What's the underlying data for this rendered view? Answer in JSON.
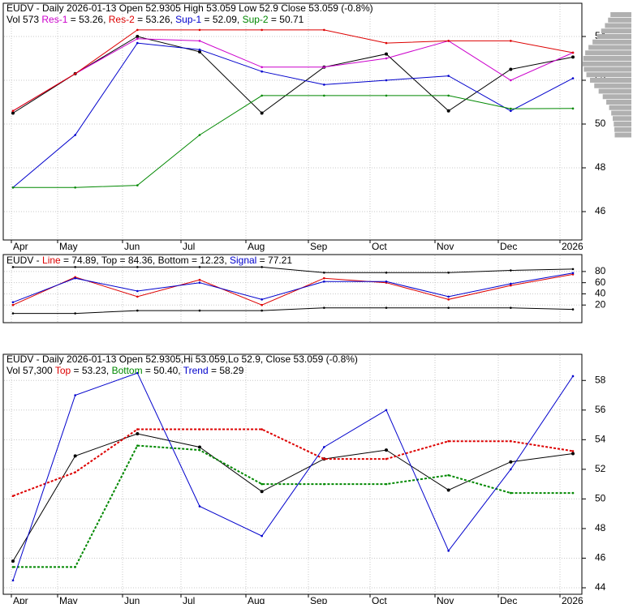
{
  "colors": {
    "red": "#dd0000",
    "blue": "#0000cc",
    "green": "#008800",
    "magenta": "#cc00cc",
    "volume": "#f0a080",
    "profile": "#b0b0b0",
    "grid": "#c8c8c8",
    "arrow_up": "#119911",
    "arrow_down": "#dd1111"
  },
  "panel1": {
    "header": {
      "symbol": "EUDV",
      "desc": " - Daily 2026-01-13 Open 52.9305  High 53.059  Low 52.9  Close 53.059 (-0.8%)"
    },
    "legend": [
      {
        "text": "Vol 573 ",
        "color": "#000000"
      },
      {
        "text": "Res-1",
        "color": "#cc00cc"
      },
      {
        "text": " = 53.26, ",
        "color": "#000000"
      },
      {
        "text": "Res-2",
        "color": "#dd0000"
      },
      {
        "text": " = 53.26, ",
        "color": "#000000"
      },
      {
        "text": "Sup-1",
        "color": "#0000cc"
      },
      {
        "text": " = 52.09, ",
        "color": "#000000"
      },
      {
        "text": "Sup-2",
        "color": "#008800"
      },
      {
        "text": " = 50.71",
        "color": "#000000"
      }
    ],
    "y_ticks": [
      "54",
      "52",
      "50",
      "48",
      "46"
    ]
  },
  "panel2": {
    "header": [
      {
        "text": "EUDV",
        "color": "#000000"
      },
      {
        "text": " - ",
        "color": "#000000"
      },
      {
        "text": "Line",
        "color": "#dd0000"
      },
      {
        "text": " = 74.89, ",
        "color": "#000000"
      },
      {
        "text": "Top",
        "color": "#000000"
      },
      {
        "text": " = 84.36, ",
        "color": "#000000"
      },
      {
        "text": "Bottom",
        "color": "#000000"
      },
      {
        "text": " = 12.23, ",
        "color": "#000000"
      },
      {
        "text": "Signal",
        "color": "#0000cc"
      },
      {
        "text": " = 77.21",
        "color": "#000000"
      }
    ],
    "y_ticks": [
      "80",
      "60",
      "40",
      "20"
    ]
  },
  "panel3": {
    "header": {
      "symbol": "EUDV",
      "desc": " - Daily 2026-01-13 Open 52.9305,Hi 53.059,Lo 52.9, Close 53.059 (-0.8%)"
    },
    "legend": [
      {
        "text": "Vol 57,300 ",
        "color": "#000000"
      },
      {
        "text": "Top",
        "color": "#dd0000"
      },
      {
        "text": " = 53.23, ",
        "color": "#000000"
      },
      {
        "text": "Bottom",
        "color": "#008800"
      },
      {
        "text": " = 50.40, ",
        "color": "#000000"
      },
      {
        "text": "Trend",
        "color": "#0000cc"
      },
      {
        "text": " = 58.29",
        "color": "#000000"
      }
    ],
    "y_ticks": [
      "58",
      "56",
      "54",
      "52",
      "50",
      "48",
      "46",
      "44"
    ]
  },
  "x_ticks": [
    "Apr",
    "May",
    "Jun",
    "Jul",
    "Aug",
    "Sep",
    "Oct",
    "Nov",
    "Dec",
    "2026"
  ],
  "chart_data": [
    {
      "type": "line",
      "title": "EUDV - Daily 2026-01-13 Open 52.9305  High 53.059  Low 52.9  Close 53.059 (-0.8%)",
      "x": [
        "Apr",
        "May",
        "Jun",
        "Jul",
        "Aug",
        "Sep",
        "Oct",
        "Nov",
        "Dec",
        "2026"
      ],
      "ylim": [
        45,
        55
      ],
      "series": [
        {
          "name": "Close",
          "values": [
            50.5,
            52.3,
            54.0,
            53.3,
            50.5,
            52.6,
            53.2,
            50.6,
            52.5,
            53.06
          ]
        },
        {
          "name": "Res-1",
          "values": [
            50.6,
            52.3,
            53.9,
            53.8,
            52.6,
            52.6,
            53.0,
            53.8,
            52.0,
            53.26
          ]
        },
        {
          "name": "Res-2",
          "values": [
            50.6,
            52.3,
            54.3,
            54.3,
            54.3,
            54.3,
            53.7,
            53.8,
            53.8,
            53.26
          ]
        },
        {
          "name": "Sup-1",
          "values": [
            47.1,
            49.5,
            53.7,
            53.4,
            52.4,
            51.8,
            52.0,
            52.2,
            50.6,
            52.09
          ]
        },
        {
          "name": "Sup-2",
          "values": [
            47.1,
            47.1,
            47.2,
            49.5,
            51.3,
            51.3,
            51.3,
            51.3,
            50.7,
            50.71
          ]
        }
      ]
    },
    {
      "type": "line",
      "title": "EUDV - Line = 74.89, Top = 84.36, Bottom = 12.23, Signal = 77.21",
      "x": [
        "Apr",
        "May",
        "Jun",
        "Jul",
        "Aug",
        "Sep",
        "Oct",
        "Nov",
        "Dec",
        "2026"
      ],
      "ylim": [
        0,
        90
      ],
      "series": [
        {
          "name": "Line",
          "values": [
            20,
            70,
            35,
            65,
            20,
            68,
            60,
            30,
            55,
            74.89
          ]
        },
        {
          "name": "Signal",
          "values": [
            25,
            68,
            45,
            60,
            30,
            62,
            62,
            35,
            58,
            77.21
          ]
        },
        {
          "name": "Top",
          "values": [
            88,
            88,
            88,
            88,
            88,
            78,
            78,
            78,
            82,
            84.36
          ]
        },
        {
          "name": "Bottom",
          "values": [
            5,
            5,
            10,
            10,
            10,
            15,
            15,
            15,
            15,
            12.23
          ]
        }
      ]
    },
    {
      "type": "line",
      "title": "EUDV - Daily 2026-01-13 Open 52.9305,Hi 53.059,Lo 52.9, Close 53.059 (-0.8%)",
      "x": [
        "Apr",
        "May",
        "Jun",
        "Jul",
        "Aug",
        "Sep",
        "Oct",
        "Nov",
        "Dec",
        "2026"
      ],
      "ylim": [
        44,
        59
      ],
      "series": [
        {
          "name": "Close",
          "values": [
            45.8,
            52.9,
            54.4,
            53.5,
            50.5,
            52.7,
            53.3,
            50.6,
            52.5,
            53.06
          ]
        },
        {
          "name": "Top",
          "values": [
            50.2,
            51.8,
            54.7,
            54.7,
            54.7,
            52.7,
            52.7,
            53.9,
            53.9,
            53.23
          ]
        },
        {
          "name": "Bottom",
          "values": [
            45.4,
            45.4,
            53.6,
            53.3,
            51.0,
            51.0,
            51.0,
            51.6,
            50.4,
            50.4
          ]
        },
        {
          "name": "Trend",
          "values": [
            44.5,
            57.0,
            58.5,
            49.5,
            47.5,
            53.5,
            56.0,
            46.5,
            52.0,
            58.29
          ]
        }
      ]
    }
  ]
}
